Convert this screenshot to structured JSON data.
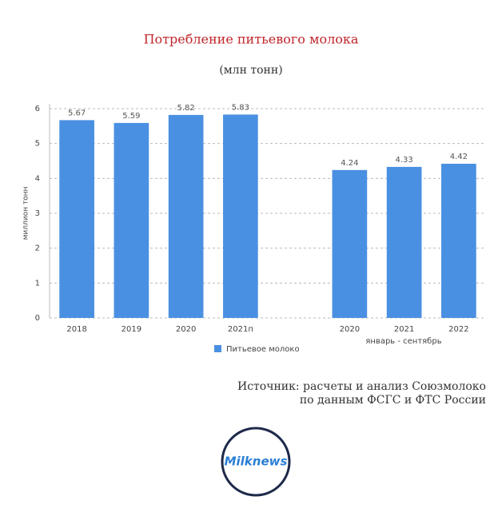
{
  "chart_data": {
    "type": "bar",
    "title": "Потребление питьевого молока",
    "subtitle": "(млн тонн)",
    "y_label": "миллион тонн",
    "categories": [
      "2018",
      "2019",
      "2020",
      "2021п",
      null,
      "2020",
      "2021",
      "2022"
    ],
    "series": [
      {
        "name": "Питьевое молоко",
        "color": "#4a90e2",
        "values": [
          5.67,
          5.59,
          5.82,
          5.83,
          null,
          4.24,
          4.33,
          4.42
        ]
      }
    ],
    "annotations": [
      "январь - сентябрь"
    ],
    "source": [
      "Источник: расчеты и анализ Союзмолоко",
      "по данным ФСГС и ФТС России"
    ],
    "ylim": [
      0,
      6
    ],
    "yticks": [
      0,
      1,
      2,
      3,
      4,
      5,
      6
    ],
    "grid": true,
    "legend": "bottom"
  },
  "logo": "Milknews"
}
